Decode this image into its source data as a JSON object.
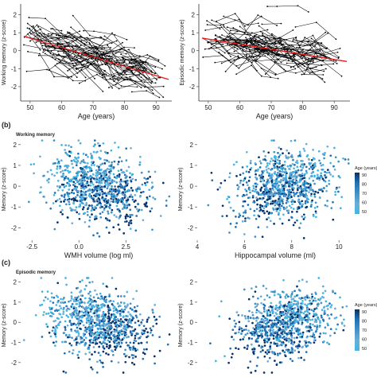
{
  "panel_labels": [
    "(b)",
    "(c)"
  ],
  "section_titles": [
    "Working memory",
    "Episodic memory"
  ],
  "legend": {
    "title": "Age (years)",
    "ticks": [
      90,
      80,
      70,
      60,
      50
    ],
    "colors": [
      "#08306b",
      "#2171b5",
      "#4292c6",
      "#6baed6",
      "#41b6e6"
    ]
  },
  "colors": {
    "trajectory": "#000000",
    "trend": "#e41a1c"
  },
  "chart_data": [
    {
      "id": "a1",
      "type": "line",
      "ylabel": "Working memory (z-score)",
      "xlabel": "Age (years)",
      "xlim": [
        47,
        95
      ],
      "ylim": [
        -2.8,
        2.6
      ],
      "xticks": [
        50,
        60,
        70,
        80,
        90
      ],
      "yticks": [
        -2,
        -1,
        0,
        1,
        2
      ],
      "trend": {
        "x": [
          48,
          94
        ],
        "y": [
          0.8,
          -1.6
        ]
      },
      "individual_trajectories": {
        "count": 130,
        "age_range": [
          48,
          92
        ]
      }
    },
    {
      "id": "a2",
      "type": "line",
      "ylabel": "Episodic memory (z-score)",
      "xlabel": "Age (years)",
      "xlim": [
        47,
        95
      ],
      "ylim": [
        -2.8,
        2.6
      ],
      "xticks": [
        50,
        60,
        70,
        80,
        90
      ],
      "yticks": [
        -2,
        -1,
        0,
        1,
        2
      ],
      "trend": {
        "x": [
          48,
          94
        ],
        "y": [
          0.7,
          -0.6
        ]
      },
      "individual_trajectories": {
        "count": 130,
        "age_range": [
          48,
          92
        ]
      }
    },
    {
      "id": "b1",
      "type": "scatter",
      "ylabel": "Memory (z-score)",
      "xlabel": "WMH volume (log ml)",
      "xlim": [
        -3.1,
        5.2
      ],
      "ylim": [
        -2.6,
        2.3
      ],
      "xticks": [
        -2.5,
        0.0,
        2.5
      ],
      "xtick_labels": [
        "-2.5",
        "0.0",
        "2.5"
      ],
      "yticks": [
        -2,
        -1,
        0,
        1,
        2
      ],
      "points": {
        "count": 900,
        "x_center": 1.0,
        "x_spread": 1.3,
        "y_slope": -0.22
      }
    },
    {
      "id": "b2",
      "type": "scatter",
      "ylabel": "Memory (z-score)",
      "xlabel": "Hippocampal volume (ml)",
      "xlim": [
        4,
        10.6
      ],
      "ylim": [
        -2.6,
        2.3
      ],
      "xticks": [
        4,
        6,
        8,
        10
      ],
      "yticks": [
        -2,
        -1,
        0,
        1,
        2
      ],
      "points": {
        "count": 900,
        "x_center": 7.7,
        "x_spread": 1.0,
        "y_slope": 0.28
      }
    },
    {
      "id": "c1",
      "type": "scatter",
      "ylabel": "Memory (z-score)",
      "xlabel": "",
      "xlim": [
        -3.1,
        5.2
      ],
      "ylim": [
        -2.6,
        2.3
      ],
      "xticks": [],
      "yticks": [
        -2,
        -1,
        0,
        1,
        2
      ],
      "points": {
        "count": 900,
        "x_center": 1.0,
        "x_spread": 1.3,
        "y_slope": -0.25
      }
    },
    {
      "id": "c2",
      "type": "scatter",
      "ylabel": "Memory (z-score)",
      "xlabel": "",
      "xlim": [
        4,
        10.6
      ],
      "ylim": [
        -2.6,
        2.3
      ],
      "xticks": [],
      "yticks": [
        -2,
        -1,
        0,
        1,
        2
      ],
      "points": {
        "count": 900,
        "x_center": 7.7,
        "x_spread": 1.0,
        "y_slope": 0.3
      }
    }
  ]
}
